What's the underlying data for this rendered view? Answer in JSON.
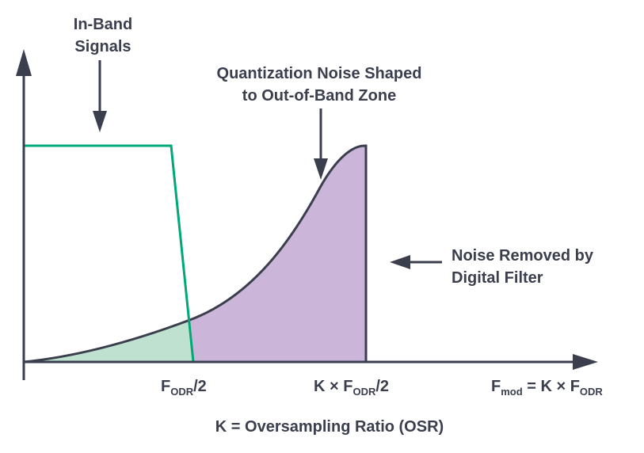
{
  "labels": {
    "in_band_line1": "In-Band",
    "in_band_line2": "Signals",
    "noise_shaped_line1": "Quantization Noise Shaped",
    "noise_shaped_line2": "to Out-of-Band Zone",
    "noise_removed_line1": "Noise Removed by",
    "noise_removed_line2": "Digital Filter",
    "caption": "K = Oversampling Ratio (OSR)"
  },
  "axis_ticks": {
    "tick1": {
      "main": "F",
      "sub": "ODR",
      "tail": "/2"
    },
    "tick2": {
      "prefix": "K × F",
      "sub": "ODR",
      "tail": "/2"
    },
    "tick3": {
      "f": "F",
      "sub1": "mod",
      "middle": " = K × F",
      "sub2": "ODR"
    }
  },
  "colors": {
    "axis": "#3a3e4d",
    "text": "#3a3e4d",
    "signal_band": "#00a878",
    "signal_fill": "#bfe2d0",
    "noise_fill": "#cbb6d9"
  },
  "icons": {
    "pointer_arrow": "arrow",
    "axis_head": "triangle-arrowhead"
  }
}
